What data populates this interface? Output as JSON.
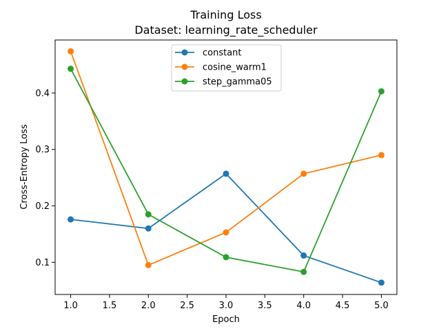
{
  "chart_data": {
    "type": "line",
    "title": "Training Loss",
    "subtitle": "Dataset: learning_rate_scheduler",
    "xlabel": "Epoch",
    "ylabel": "Cross-Entropy Loss",
    "x": [
      1.0,
      2.0,
      3.0,
      4.0,
      5.0
    ],
    "xlim": [
      0.8,
      5.2
    ],
    "ylim": [
      0.043,
      0.494
    ],
    "xticks": [
      "1.0",
      "1.5",
      "2.0",
      "2.5",
      "3.0",
      "3.5",
      "4.0",
      "4.5",
      "5.0"
    ],
    "yticks": [
      "0.1",
      "0.2",
      "0.3",
      "0.4"
    ],
    "grid": false,
    "legend_position": "top-center",
    "series": [
      {
        "name": "constant",
        "color": "#1f77b4",
        "values": [
          0.176,
          0.16,
          0.257,
          0.112,
          0.064
        ]
      },
      {
        "name": "cosine_warm1",
        "color": "#ff7f0e",
        "values": [
          0.474,
          0.095,
          0.153,
          0.257,
          0.29
        ]
      },
      {
        "name": "step_gamma05",
        "color": "#2ca02c",
        "values": [
          0.443,
          0.185,
          0.109,
          0.083,
          0.403
        ]
      }
    ]
  }
}
